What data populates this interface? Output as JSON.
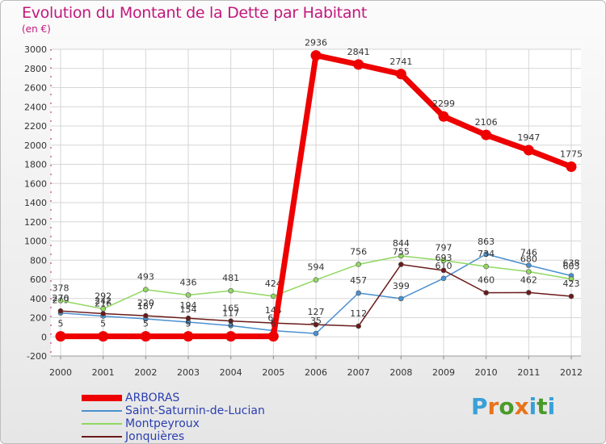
{
  "title": "Evolution du Montant de la Dette par Habitant",
  "subtitle": "(en €)",
  "logo": {
    "text": "Proxiti",
    "colors": [
      "#3aa0d8",
      "#e8731a",
      "#4a9a2a",
      "#e8731a",
      "#3aa0d8",
      "#4a9a2a",
      "#3aa0d8"
    ]
  },
  "colors": {
    "title": "#c2187c",
    "legend_text": "#2b3fb0",
    "axis_text": "#333333",
    "label_text": "#333333"
  },
  "chart_data": {
    "type": "line",
    "x": [
      2000,
      2001,
      2002,
      2003,
      2004,
      2005,
      2006,
      2007,
      2008,
      2009,
      2010,
      2011,
      2012
    ],
    "ylim": [
      -200,
      3000
    ],
    "yticks": [
      -200,
      0,
      200,
      400,
      600,
      800,
      1000,
      1200,
      1400,
      1600,
      1800,
      2000,
      2200,
      2400,
      2600,
      2800,
      3000
    ],
    "grid": true,
    "legend_position": "bottom-left",
    "series": [
      {
        "name": "Saint-Saturnin-de-Lucian",
        "color": "#4a90d0",
        "width": 1.5,
        "marker": 6,
        "values": [
          249,
          216,
          187,
          154,
          117,
          64,
          35,
          457,
          399,
          610,
          863,
          746,
          638
        ]
      },
      {
        "name": "Montpeyroux",
        "color": "#90d860",
        "width": 1.5,
        "marker": 6,
        "values": [
          378,
          292,
          493,
          436,
          481,
          424,
          594,
          756,
          844,
          797,
          734,
          680,
          603
        ]
      },
      {
        "name": "Jonquières",
        "color": "#6a1a1a",
        "width": 1.5,
        "marker": 6,
        "values": [
          270,
          242,
          220,
          194,
          165,
          144,
          127,
          112,
          755,
          693,
          460,
          462,
          423
        ]
      },
      {
        "name": "ARBORAS",
        "color": "#ee0000",
        "width": 7,
        "marker": 13,
        "values": [
          5,
          5,
          5,
          5,
          5,
          5,
          2936,
          2841,
          2741,
          2299,
          2106,
          1947,
          1775
        ]
      }
    ]
  }
}
